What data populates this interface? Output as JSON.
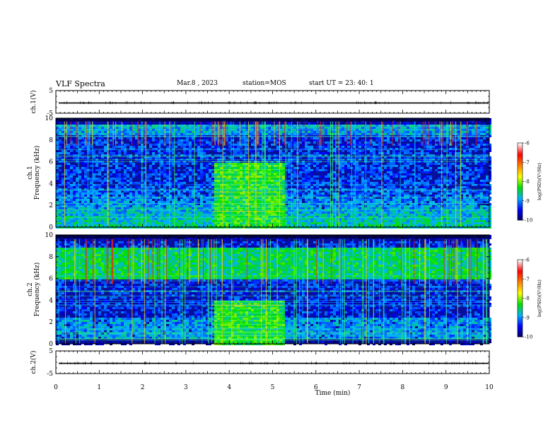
{
  "header": {
    "title": "VLF Spectra",
    "date": "Mar.8 , 2023",
    "station": "station=MOS",
    "start_ut": "start UT = 23: 40: 1"
  },
  "chart_data": [
    {
      "type": "line",
      "panel": "ch1-waveform",
      "ylabel": "ch.1(V)",
      "ytick_labels": [
        "5",
        "-5"
      ],
      "ylim": [
        -5,
        5
      ],
      "xlim": [
        0,
        10
      ],
      "level": -0.5
    },
    {
      "type": "heatmap",
      "panel": "ch1-spectrogram",
      "ylabel": "ch.1\nFrequency (kHz)",
      "ytick_labels": [
        "0",
        "2",
        "4",
        "6",
        "8",
        "10"
      ],
      "ylim": [
        0,
        10
      ],
      "xlim": [
        0,
        10
      ],
      "colorbar": {
        "label": "log(PSD)(V²/Hz)",
        "range": [
          -10,
          -6
        ],
        "tick_labels": [
          "-6",
          "-7",
          "-8",
          "-9",
          "-10"
        ],
        "colors": [
          "#000060",
          "#0000ff",
          "#00b0ff",
          "#00e000",
          "#ffff00",
          "#ff8000",
          "#ff0000",
          "#ffffff"
        ]
      },
      "enhanced_band": {
        "t_start_min": 3.6,
        "t_end_min": 5.25,
        "f_max_khz": 6
      }
    },
    {
      "type": "heatmap",
      "panel": "ch2-spectrogram",
      "ylabel": "ch.2\nFrequency (kHz)",
      "ytick_labels": [
        "0",
        "2",
        "4",
        "6",
        "8",
        "10"
      ],
      "ylim": [
        0,
        10
      ],
      "xlim": [
        0,
        10
      ],
      "colorbar": {
        "label": "log(PSD)(V²/Hz)",
        "range": [
          -10,
          -6
        ],
        "tick_labels": [
          "-6",
          "-7",
          "-8",
          "-9",
          "-10"
        ],
        "colors": [
          "#000060",
          "#0000ff",
          "#00b0ff",
          "#00e000",
          "#ffff00",
          "#ff8000",
          "#ff0000",
          "#ffffff"
        ]
      },
      "enhanced_band": {
        "t_start_min": 3.6,
        "t_end_min": 5.25,
        "f_max_khz": 4
      }
    },
    {
      "type": "line",
      "panel": "ch2-waveform",
      "ylabel": "ch.2(V)",
      "ytick_labels": [
        "5",
        "-5"
      ],
      "ylim": [
        -5,
        5
      ],
      "xlim": [
        0,
        10
      ],
      "level": -0.5
    }
  ],
  "xaxis": {
    "label": "Time (min)",
    "tick_labels": [
      "0",
      "1",
      "2",
      "3",
      "4",
      "5",
      "6",
      "7",
      "8",
      "9",
      "10"
    ],
    "xlim": [
      0,
      10
    ]
  }
}
